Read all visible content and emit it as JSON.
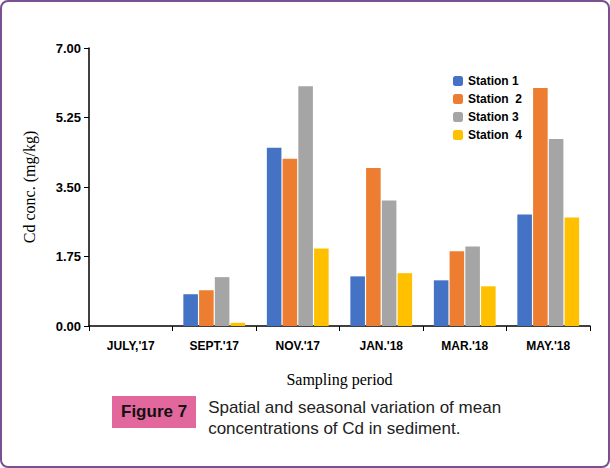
{
  "chart_data": {
    "type": "bar",
    "ylabel": "Cd conc. (mg/kg)",
    "xlabel": "Sampling period",
    "categories": [
      "JULY,'17",
      "SEPT.'17",
      "NOV.'17",
      "JAN.'18",
      "MAR.'18",
      "MAY.'18"
    ],
    "series": [
      {
        "name": "Station 1",
        "color": "#4472c4",
        "values": [
          0,
          0.8,
          4.49,
          1.25,
          1.15,
          2.81
        ]
      },
      {
        "name": "Station  2",
        "color": "#ed7d31",
        "values": [
          0,
          0.9,
          4.21,
          3.98,
          1.88,
          5.99
        ]
      },
      {
        "name": "Station 3",
        "color": "#a5a5a5",
        "values": [
          0,
          1.23,
          6.04,
          3.16,
          2.0,
          4.71
        ]
      },
      {
        "name": "Station  4",
        "color": "#ffc000",
        "values": [
          0,
          0.08,
          1.95,
          1.33,
          1.0,
          2.73
        ]
      }
    ],
    "ylim": [
      0,
      7
    ],
    "yticks": [
      {
        "value": 0,
        "label": "0.00"
      },
      1.75,
      {
        "value": 3.5,
        "label": "3.50"
      },
      5.25,
      {
        "value": 7,
        "label": "7.00"
      }
    ],
    "grid": false,
    "legend": "upper right"
  },
  "figure": {
    "label": "Figure 7",
    "caption": "Spatial and seasonal variation of mean concentrations of Cd in sediment."
  }
}
